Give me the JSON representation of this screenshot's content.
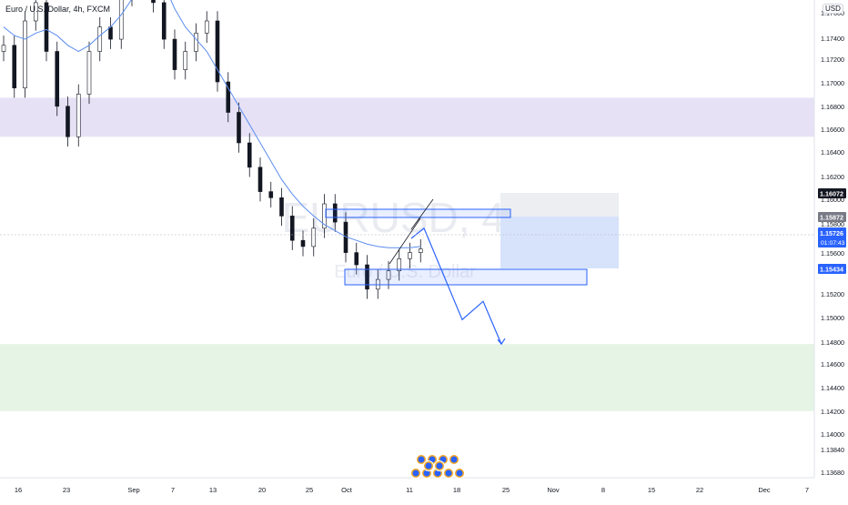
{
  "header": {
    "symbol_title": "Euro / U.S. Dollar, 4h, FXCM"
  },
  "price_axis": {
    "currency": "USD",
    "tick_labels": [
      "1.17600",
      "1.17400",
      "1.17200",
      "1.17000",
      "1.16800",
      "1.16600",
      "1.16400",
      "1.16200",
      "1.16000",
      "1.15800",
      "1.15600",
      "1.15200",
      "1.15000",
      "1.14800",
      "1.14600",
      "1.14400",
      "1.14200",
      "1.14000",
      "1.13840",
      "1.13680"
    ]
  },
  "time_axis": {
    "tick_labels": [
      "16",
      "23",
      "Sep",
      "7",
      "13",
      "20",
      "25",
      "Oct",
      "11",
      "18",
      "25",
      "Nov",
      "8",
      "15",
      "22",
      "Dec",
      "7"
    ]
  },
  "price_markers": {
    "high": "1.16072",
    "mid": "1.15872",
    "last_price": "1.15726",
    "countdown": "01:07:43",
    "target": "1.15434"
  },
  "watermark": {
    "symbol": "EURUSD, 4h",
    "name": "Euro / U.S. Dollar"
  },
  "colors": {
    "resistance_zone": "#e6e1f5",
    "support_zone": "#e5f4e5",
    "drawing_blue": "#2962ff",
    "moving_average": "#5b8def",
    "candle_body": "#131722",
    "last_price_badge": "#2962ff",
    "high_badge": "#131722",
    "mid_badge": "#787b86"
  },
  "chart_data": {
    "type": "candlestick",
    "title": "Euro / U.S. Dollar, 4h, FXCM",
    "ylim": [
      1.136,
      1.179
    ],
    "series": [
      {
        "type": "close",
        "values": [
          1.174,
          1.1705,
          1.176,
          1.1775,
          1.1735,
          1.169,
          1.1665,
          1.17,
          1.1735,
          1.1755,
          1.1745,
          1.178,
          1.179,
          1.1792,
          1.1775,
          1.1745,
          1.172,
          1.1735,
          1.175,
          1.176,
          1.171,
          1.1685,
          1.166,
          1.164,
          1.162,
          1.1615,
          1.16,
          1.158,
          1.1575,
          1.159,
          1.161,
          1.1595,
          1.157,
          1.156,
          1.154,
          1.1548,
          1.1555,
          1.1565,
          1.157,
          1.1573
        ]
      },
      {
        "type": "moving-average",
        "values": [
          1.1755,
          1.1748,
          1.1745,
          1.175,
          1.1753,
          1.1748,
          1.174,
          1.1735,
          1.174,
          1.1748,
          1.1755,
          1.1765,
          1.1778,
          1.179,
          1.18,
          1.179,
          1.177,
          1.1755,
          1.1745,
          1.1735,
          1.172,
          1.1705,
          1.169,
          1.1675,
          1.166,
          1.1645,
          1.163,
          1.1618,
          1.1608,
          1.16,
          1.1593,
          1.1588,
          1.1583,
          1.158,
          1.1577,
          1.1575,
          1.1574,
          1.1574,
          1.1574,
          1.1575
        ]
      }
    ],
    "zones": [
      {
        "from": 1.1665,
        "to": 1.1697,
        "color": "#e6e1f5"
      },
      {
        "from": 1.144,
        "to": 1.1495,
        "color": "#e5f4e5"
      }
    ],
    "projected_path": [
      1.159,
      1.1515,
      1.153,
      1.1495
    ]
  }
}
